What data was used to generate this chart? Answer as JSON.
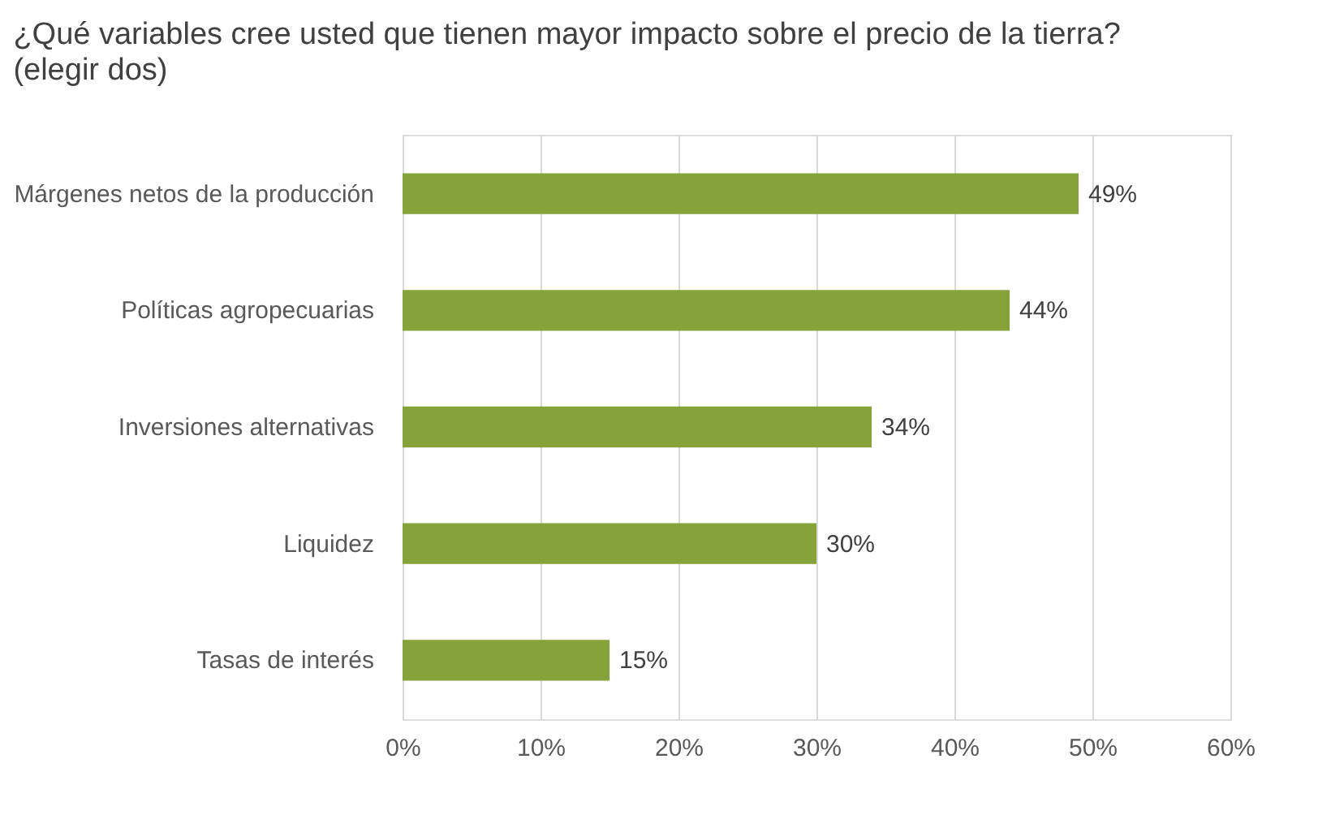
{
  "chart_data": {
    "type": "bar",
    "orientation": "horizontal",
    "title": "¿Qué variables cree usted que tienen mayor impacto sobre el precio de la tierra?",
    "subtitle": "(elegir dos)",
    "categories": [
      "Márgenes netos de la producción",
      "Políticas agropecuarias",
      "Inversiones alternativas",
      "Liquidez",
      "Tasas de interés"
    ],
    "values": [
      49,
      44,
      34,
      30,
      15
    ],
    "value_labels": [
      "49%",
      "44%",
      "34%",
      "30%",
      "15%"
    ],
    "color": "#86a33a",
    "xlim": [
      0,
      60
    ],
    "xticks": [
      {
        "value": 0,
        "label": "0%"
      },
      {
        "value": 10,
        "label": "10%"
      },
      {
        "value": 20,
        "label": "20%"
      },
      {
        "value": 30,
        "label": "30%"
      },
      {
        "value": 40,
        "label": "40%"
      },
      {
        "value": 50,
        "label": "50%"
      },
      {
        "value": 60,
        "label": "60%"
      }
    ],
    "grid": "x"
  }
}
